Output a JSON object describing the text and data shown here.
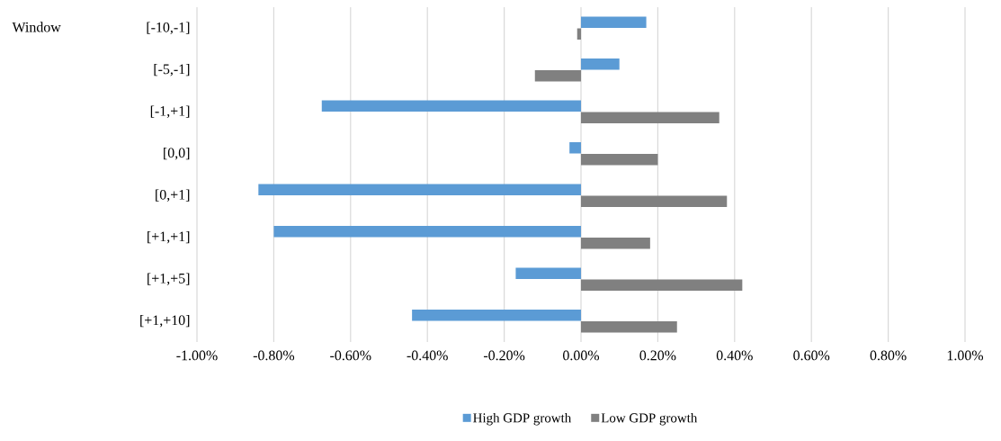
{
  "chart_data": {
    "type": "bar",
    "orientation": "horizontal",
    "annotations": [
      "Window"
    ],
    "categories": [
      "[-10,-1]",
      "[-5,-1]",
      "[-1,+1]",
      "[0,0]",
      "[0,+1]",
      "[+1,+1]",
      "[+1,+5]",
      "[+1,+10]"
    ],
    "series": [
      {
        "name": "High GDP growth",
        "color": "#5b9bd5",
        "values": [
          0.17,
          0.1,
          -0.675,
          -0.03,
          -0.84,
          -0.8,
          -0.17,
          -0.44
        ]
      },
      {
        "name": "Low GDP growth",
        "color": "#808080",
        "values": [
          -0.01,
          -0.12,
          0.36,
          0.2,
          0.38,
          0.18,
          0.42,
          0.25
        ]
      }
    ],
    "xlim": [
      -1,
      1
    ],
    "xticks": [
      {
        "value": -1,
        "label": "-1.00%"
      },
      {
        "value": -0.8,
        "label": "-0.80%"
      },
      {
        "value": -0.6,
        "label": "-0.60%"
      },
      {
        "value": -0.4,
        "label": "-0.40%"
      },
      {
        "value": -0.2,
        "label": "-0.20%"
      },
      {
        "value": 0,
        "label": "0.00%"
      },
      {
        "value": 0.2,
        "label": "0.20%"
      },
      {
        "value": 0.4,
        "label": "0.40%"
      },
      {
        "value": 0.6,
        "label": "0.60%"
      },
      {
        "value": 0.8,
        "label": "0.80%"
      },
      {
        "value": 1,
        "label": "1.00%"
      }
    ],
    "grid": "x",
    "legend": "bottom"
  }
}
